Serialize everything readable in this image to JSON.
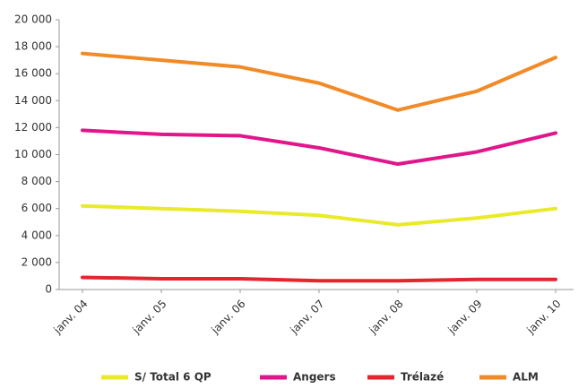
{
  "chart_data": {
    "type": "line",
    "categories": [
      "janv. 04",
      "janv. 05",
      "janv. 06",
      "janv. 07",
      "janv. 08",
      "janv. 09",
      "janv. 10"
    ],
    "series": [
      {
        "name": "S/ Total 6 QP",
        "color": "#e8ea2a",
        "values": [
          6200,
          6000,
          5800,
          5500,
          4800,
          5300,
          6000
        ]
      },
      {
        "name": "Angers",
        "color": "#e0168a",
        "values": [
          11800,
          11500,
          11400,
          10500,
          9300,
          10200,
          11600
        ]
      },
      {
        "name": "Trélazé",
        "color": "#e3262d",
        "values": [
          900,
          800,
          800,
          650,
          650,
          750,
          750
        ]
      },
      {
        "name": "ALM",
        "color": "#f18a27",
        "values": [
          17500,
          17000,
          16500,
          15300,
          13300,
          14700,
          17200
        ]
      }
    ],
    "ylim": [
      0,
      20000
    ],
    "yticks": [
      0,
      {
        "value": 2000,
        "label": "2 000"
      },
      {
        "value": 4000,
        "label": "4 000"
      },
      {
        "value": 6000,
        "label": "6 000"
      },
      {
        "value": 8000,
        "label": "8 000"
      },
      {
        "value": 10000,
        "label": "10 000"
      },
      {
        "value": 12000,
        "label": "12 000"
      },
      {
        "value": 14000,
        "label": "14 000"
      },
      {
        "value": 16000,
        "label": "16 000"
      },
      {
        "value": 18000,
        "label": "18 000"
      },
      {
        "value": 20000,
        "label": "20 000"
      }
    ],
    "grid": false,
    "legend": "bottom"
  }
}
